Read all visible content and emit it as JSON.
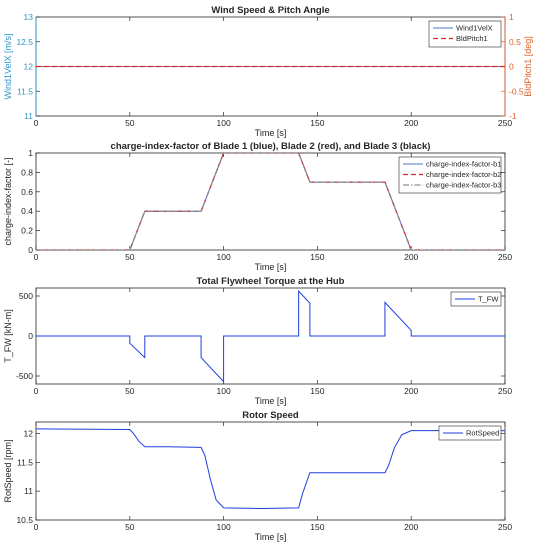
{
  "chart_data": [
    {
      "type": "line",
      "title": "Wind Speed & Pitch Angle",
      "xlabel": "Time [s]",
      "ylabel": "Wind1VelX [m/s]",
      "ylabel_right": "BldPitch1 [deg]",
      "xlim": [
        0,
        250
      ],
      "ylim": [
        11,
        13
      ],
      "ylim_right": [
        -1,
        1
      ],
      "xticks": [
        "0",
        "50",
        "100",
        "150",
        "200",
        "250"
      ],
      "yticks": [
        "11",
        "11.5",
        "12",
        "12.5",
        "13"
      ],
      "yticks_right": [
        "-1",
        "-0.5",
        "0",
        "0.5",
        "1"
      ],
      "legend_position": "top-right",
      "grid": false,
      "series": [
        {
          "name": "Wind1VelX",
          "axis": "left",
          "color": "#4a73c9",
          "style": "solid",
          "x": [
            0,
            250
          ],
          "values": [
            12,
            12
          ]
        },
        {
          "name": "BldPitch1",
          "axis": "right",
          "color": "#d62728",
          "style": "dashed",
          "x": [
            0,
            250
          ],
          "values": [
            0,
            0
          ]
        }
      ]
    },
    {
      "type": "line",
      "title": "charge-index-factor of Blade 1 (blue), Blade 2 (red), and Blade 3 (black)",
      "xlabel": "Time [s]",
      "ylabel": "charge-index-factor [-]",
      "xlim": [
        0,
        250
      ],
      "ylim": [
        0,
        1
      ],
      "xticks": [
        "0",
        "50",
        "100",
        "150",
        "200",
        "250"
      ],
      "yticks": [
        "0",
        "0.2",
        "0.4",
        "0.6",
        "0.8",
        "1"
      ],
      "legend_position": "top-right",
      "grid": false,
      "series": [
        {
          "name": "charge-index-factor-b1",
          "color": "#4a73c9",
          "style": "solid",
          "x": [
            0,
            50,
            58,
            88,
            100,
            140,
            146,
            186,
            200,
            250
          ],
          "values": [
            0,
            0,
            0.4,
            0.4,
            1,
            1,
            0.7,
            0.7,
            0,
            0
          ]
        },
        {
          "name": "charge-index-factor-b2",
          "color": "#d62728",
          "style": "dashed",
          "x": [
            0,
            50,
            58,
            88,
            100,
            140,
            146,
            186,
            200,
            250
          ],
          "values": [
            0,
            0,
            0.4,
            0.4,
            1,
            1,
            0.7,
            0.7,
            0,
            0
          ]
        },
        {
          "name": "charge-index-factor-b3",
          "color": "#8c8c8c",
          "style": "dashdot",
          "x": [
            0,
            50,
            58,
            88,
            100,
            140,
            146,
            186,
            200,
            250
          ],
          "values": [
            0,
            0,
            0.4,
            0.4,
            1,
            1,
            0.7,
            0.7,
            0,
            0
          ]
        }
      ]
    },
    {
      "type": "line",
      "title": "Total Flywheel Torque at the Hub",
      "xlabel": "Time [s]",
      "ylabel": "T_FW [kN-m]",
      "xlim": [
        0,
        250
      ],
      "ylim": [
        -600,
        600
      ],
      "xticks": [
        "0",
        "50",
        "100",
        "150",
        "200",
        "250"
      ],
      "yticks": [
        "-500",
        "0",
        "500"
      ],
      "ytick_values": [
        -500,
        0,
        500
      ],
      "legend_position": "top-right",
      "grid": false,
      "series": [
        {
          "name": "T_FW",
          "color": "#1f3fe0",
          "style": "solid",
          "x": [
            0,
            50,
            50,
            58,
            58,
            88,
            88,
            100,
            100,
            140,
            140,
            146,
            146,
            186,
            186,
            200,
            200,
            250
          ],
          "values": [
            0,
            0,
            -90,
            -270,
            0,
            0,
            -270,
            -570,
            0,
            0,
            560,
            410,
            0,
            0,
            420,
            70,
            0,
            0
          ]
        }
      ]
    },
    {
      "type": "line",
      "title": "Rotor Speed",
      "xlabel": "Time [s]",
      "ylabel": "RotSpeed [rpm]",
      "xlim": [
        0,
        250
      ],
      "ylim": [
        10.5,
        12.2
      ],
      "xticks": [
        "0",
        "50",
        "100",
        "150",
        "200",
        "250"
      ],
      "yticks": [
        "10.5",
        "11",
        "11.5",
        "12"
      ],
      "ytick_values": [
        10.5,
        11,
        11.5,
        12
      ],
      "legend_position": "top-right",
      "grid": false,
      "series": [
        {
          "name": "RotSpeed",
          "color": "#1f3fe0",
          "style": "solid",
          "x": [
            0,
            50,
            52,
            55,
            58,
            70,
            88,
            90,
            93,
            96,
            100,
            120,
            140,
            142,
            146,
            160,
            186,
            188,
            191,
            195,
            200,
            250
          ],
          "values": [
            12.08,
            12.07,
            12.0,
            11.86,
            11.77,
            11.77,
            11.76,
            11.62,
            11.2,
            10.85,
            10.71,
            10.7,
            10.71,
            10.95,
            11.32,
            11.32,
            11.32,
            11.45,
            11.75,
            11.98,
            12.05,
            12.05
          ]
        }
      ]
    }
  ]
}
